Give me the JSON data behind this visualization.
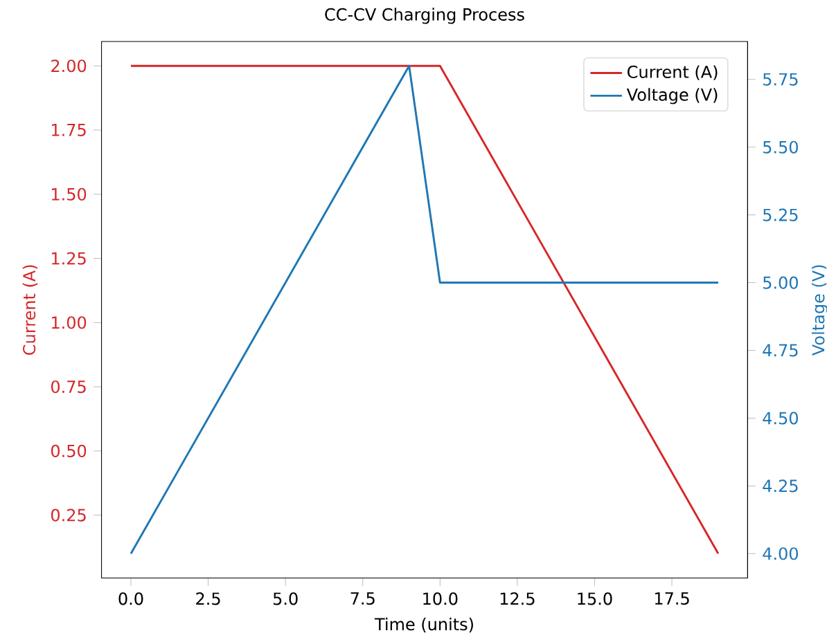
{
  "chart_data": {
    "type": "line",
    "title": "CC-CV Charging Process",
    "xlabel": "Time (units)",
    "ylabel": "Current (A)",
    "y2label": "Voltage (V)",
    "series": [
      {
        "name": "Current (A)",
        "color": "#d62728",
        "axis": "y",
        "x": [
          0,
          10,
          19
        ],
        "values": [
          2.0,
          2.0,
          0.1
        ]
      },
      {
        "name": "Voltage (V)",
        "color": "#1f77b4",
        "axis": "y2",
        "x": [
          0,
          9,
          10,
          19
        ],
        "values": [
          4.0,
          5.8,
          5.0,
          5.0
        ]
      }
    ],
    "xlim": [
      -0.95,
      19.95
    ],
    "xticks": [
      {
        "value": 0,
        "label": "0.0"
      },
      {
        "value": 2.5,
        "label": "2.5"
      },
      {
        "value": 5,
        "label": "5.0"
      },
      {
        "value": 7.5,
        "label": "7.5"
      },
      {
        "value": 10,
        "label": "10.0"
      },
      {
        "value": 12.5,
        "label": "12.5"
      },
      {
        "value": 15,
        "label": "15.0"
      },
      {
        "value": 17.5,
        "label": "17.5"
      }
    ],
    "ylim": [
      0.005,
      2.095
    ],
    "yticks": [
      {
        "value": 0.25,
        "label": "0.25"
      },
      {
        "value": 0.5,
        "label": "0.50"
      },
      {
        "value": 0.75,
        "label": "0.75"
      },
      {
        "value": 1.0,
        "label": "1.00"
      },
      {
        "value": 1.25,
        "label": "1.25"
      },
      {
        "value": 1.5,
        "label": "1.50"
      },
      {
        "value": 1.75,
        "label": "1.75"
      },
      {
        "value": 2.0,
        "label": "2.00"
      }
    ],
    "y2lim": [
      3.91,
      5.89
    ],
    "y2ticks": [
      {
        "value": 4.0,
        "label": "4.00"
      },
      {
        "value": 4.25,
        "label": "4.25"
      },
      {
        "value": 4.5,
        "label": "4.50"
      },
      {
        "value": 4.75,
        "label": "4.75"
      },
      {
        "value": 5.0,
        "label": "5.00"
      },
      {
        "value": 5.25,
        "label": "5.25"
      },
      {
        "value": 5.5,
        "label": "5.50"
      },
      {
        "value": 5.75,
        "label": "5.75"
      }
    ],
    "legend": "top right"
  }
}
